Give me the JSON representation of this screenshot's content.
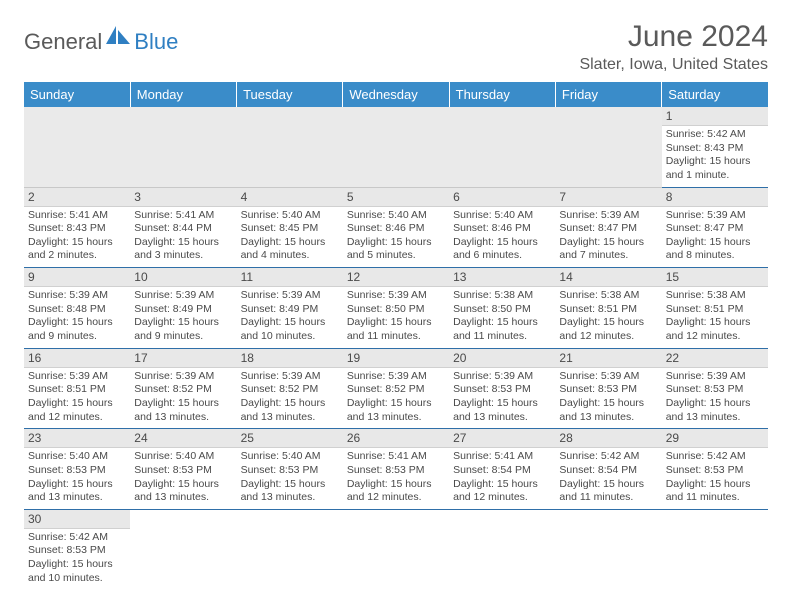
{
  "logo": {
    "general": "General",
    "blue": "Blue"
  },
  "title": "June 2024",
  "location": "Slater, Iowa, United States",
  "dayHeaders": [
    "Sunday",
    "Monday",
    "Tuesday",
    "Wednesday",
    "Thursday",
    "Friday",
    "Saturday"
  ],
  "colors": {
    "headerBg": "#3a8cc9",
    "headerText": "#ffffff",
    "logoGray": "#5a5a5a",
    "logoBlue": "#2f7fc2",
    "cellBorder": "#2f6fa8",
    "dayNumBg": "#e8e8e8"
  },
  "weeks": [
    [
      {
        "n": "",
        "sr": "",
        "ss": "",
        "dl": ""
      },
      {
        "n": "",
        "sr": "",
        "ss": "",
        "dl": ""
      },
      {
        "n": "",
        "sr": "",
        "ss": "",
        "dl": ""
      },
      {
        "n": "",
        "sr": "",
        "ss": "",
        "dl": ""
      },
      {
        "n": "",
        "sr": "",
        "ss": "",
        "dl": ""
      },
      {
        "n": "",
        "sr": "",
        "ss": "",
        "dl": ""
      },
      {
        "n": "1",
        "sr": "Sunrise: 5:42 AM",
        "ss": "Sunset: 8:43 PM",
        "dl": "Daylight: 15 hours and 1 minute."
      }
    ],
    [
      {
        "n": "2",
        "sr": "Sunrise: 5:41 AM",
        "ss": "Sunset: 8:43 PM",
        "dl": "Daylight: 15 hours and 2 minutes."
      },
      {
        "n": "3",
        "sr": "Sunrise: 5:41 AM",
        "ss": "Sunset: 8:44 PM",
        "dl": "Daylight: 15 hours and 3 minutes."
      },
      {
        "n": "4",
        "sr": "Sunrise: 5:40 AM",
        "ss": "Sunset: 8:45 PM",
        "dl": "Daylight: 15 hours and 4 minutes."
      },
      {
        "n": "5",
        "sr": "Sunrise: 5:40 AM",
        "ss": "Sunset: 8:46 PM",
        "dl": "Daylight: 15 hours and 5 minutes."
      },
      {
        "n": "6",
        "sr": "Sunrise: 5:40 AM",
        "ss": "Sunset: 8:46 PM",
        "dl": "Daylight: 15 hours and 6 minutes."
      },
      {
        "n": "7",
        "sr": "Sunrise: 5:39 AM",
        "ss": "Sunset: 8:47 PM",
        "dl": "Daylight: 15 hours and 7 minutes."
      },
      {
        "n": "8",
        "sr": "Sunrise: 5:39 AM",
        "ss": "Sunset: 8:47 PM",
        "dl": "Daylight: 15 hours and 8 minutes."
      }
    ],
    [
      {
        "n": "9",
        "sr": "Sunrise: 5:39 AM",
        "ss": "Sunset: 8:48 PM",
        "dl": "Daylight: 15 hours and 9 minutes."
      },
      {
        "n": "10",
        "sr": "Sunrise: 5:39 AM",
        "ss": "Sunset: 8:49 PM",
        "dl": "Daylight: 15 hours and 9 minutes."
      },
      {
        "n": "11",
        "sr": "Sunrise: 5:39 AM",
        "ss": "Sunset: 8:49 PM",
        "dl": "Daylight: 15 hours and 10 minutes."
      },
      {
        "n": "12",
        "sr": "Sunrise: 5:39 AM",
        "ss": "Sunset: 8:50 PM",
        "dl": "Daylight: 15 hours and 11 minutes."
      },
      {
        "n": "13",
        "sr": "Sunrise: 5:38 AM",
        "ss": "Sunset: 8:50 PM",
        "dl": "Daylight: 15 hours and 11 minutes."
      },
      {
        "n": "14",
        "sr": "Sunrise: 5:38 AM",
        "ss": "Sunset: 8:51 PM",
        "dl": "Daylight: 15 hours and 12 minutes."
      },
      {
        "n": "15",
        "sr": "Sunrise: 5:38 AM",
        "ss": "Sunset: 8:51 PM",
        "dl": "Daylight: 15 hours and 12 minutes."
      }
    ],
    [
      {
        "n": "16",
        "sr": "Sunrise: 5:39 AM",
        "ss": "Sunset: 8:51 PM",
        "dl": "Daylight: 15 hours and 12 minutes."
      },
      {
        "n": "17",
        "sr": "Sunrise: 5:39 AM",
        "ss": "Sunset: 8:52 PM",
        "dl": "Daylight: 15 hours and 13 minutes."
      },
      {
        "n": "18",
        "sr": "Sunrise: 5:39 AM",
        "ss": "Sunset: 8:52 PM",
        "dl": "Daylight: 15 hours and 13 minutes."
      },
      {
        "n": "19",
        "sr": "Sunrise: 5:39 AM",
        "ss": "Sunset: 8:52 PM",
        "dl": "Daylight: 15 hours and 13 minutes."
      },
      {
        "n": "20",
        "sr": "Sunrise: 5:39 AM",
        "ss": "Sunset: 8:53 PM",
        "dl": "Daylight: 15 hours and 13 minutes."
      },
      {
        "n": "21",
        "sr": "Sunrise: 5:39 AM",
        "ss": "Sunset: 8:53 PM",
        "dl": "Daylight: 15 hours and 13 minutes."
      },
      {
        "n": "22",
        "sr": "Sunrise: 5:39 AM",
        "ss": "Sunset: 8:53 PM",
        "dl": "Daylight: 15 hours and 13 minutes."
      }
    ],
    [
      {
        "n": "23",
        "sr": "Sunrise: 5:40 AM",
        "ss": "Sunset: 8:53 PM",
        "dl": "Daylight: 15 hours and 13 minutes."
      },
      {
        "n": "24",
        "sr": "Sunrise: 5:40 AM",
        "ss": "Sunset: 8:53 PM",
        "dl": "Daylight: 15 hours and 13 minutes."
      },
      {
        "n": "25",
        "sr": "Sunrise: 5:40 AM",
        "ss": "Sunset: 8:53 PM",
        "dl": "Daylight: 15 hours and 13 minutes."
      },
      {
        "n": "26",
        "sr": "Sunrise: 5:41 AM",
        "ss": "Sunset: 8:53 PM",
        "dl": "Daylight: 15 hours and 12 minutes."
      },
      {
        "n": "27",
        "sr": "Sunrise: 5:41 AM",
        "ss": "Sunset: 8:54 PM",
        "dl": "Daylight: 15 hours and 12 minutes."
      },
      {
        "n": "28",
        "sr": "Sunrise: 5:42 AM",
        "ss": "Sunset: 8:54 PM",
        "dl": "Daylight: 15 hours and 11 minutes."
      },
      {
        "n": "29",
        "sr": "Sunrise: 5:42 AM",
        "ss": "Sunset: 8:53 PM",
        "dl": "Daylight: 15 hours and 11 minutes."
      }
    ],
    [
      {
        "n": "30",
        "sr": "Sunrise: 5:42 AM",
        "ss": "Sunset: 8:53 PM",
        "dl": "Daylight: 15 hours and 10 minutes."
      },
      {
        "n": "",
        "sr": "",
        "ss": "",
        "dl": ""
      },
      {
        "n": "",
        "sr": "",
        "ss": "",
        "dl": ""
      },
      {
        "n": "",
        "sr": "",
        "ss": "",
        "dl": ""
      },
      {
        "n": "",
        "sr": "",
        "ss": "",
        "dl": ""
      },
      {
        "n": "",
        "sr": "",
        "ss": "",
        "dl": ""
      },
      {
        "n": "",
        "sr": "",
        "ss": "",
        "dl": ""
      }
    ]
  ]
}
